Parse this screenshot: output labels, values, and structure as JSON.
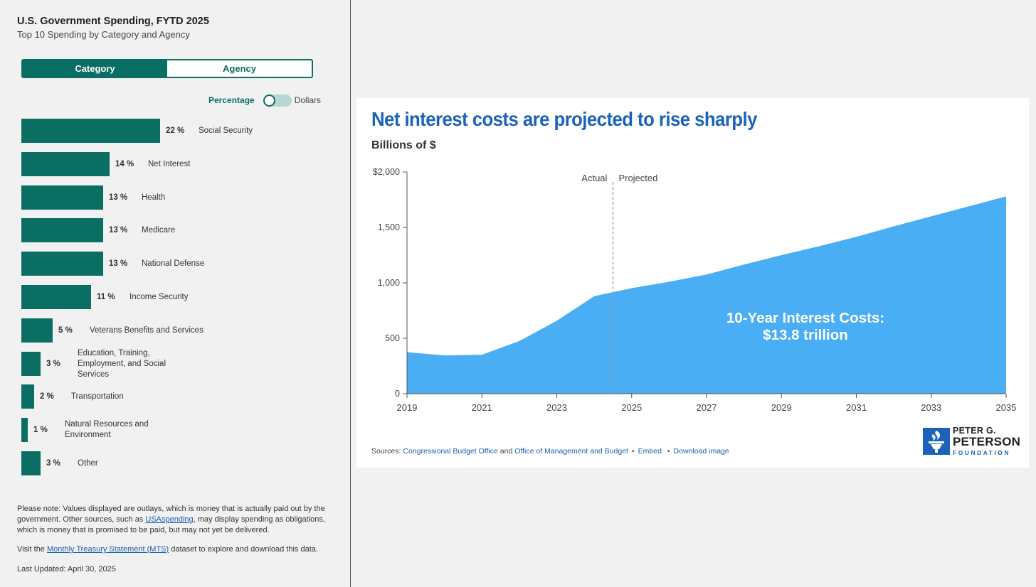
{
  "left": {
    "title": "U.S. Government Spending, FYTD 2025",
    "subtitle": "Top 10 Spending by Category and Agency",
    "tabs": [
      {
        "label": "Category",
        "active": true
      },
      {
        "label": "Agency",
        "active": false
      }
    ],
    "toggle": {
      "left_label": "Percentage",
      "right_label": "Dollars",
      "selected": "Percentage"
    },
    "bars": [
      {
        "pct": 22,
        "pct_label": "22 %",
        "label": "Social Security"
      },
      {
        "pct": 14,
        "pct_label": "14 %",
        "label": "Net Interest"
      },
      {
        "pct": 13,
        "pct_label": "13 %",
        "label": "Health"
      },
      {
        "pct": 13,
        "pct_label": "13 %",
        "label": "Medicare"
      },
      {
        "pct": 13,
        "pct_label": "13 %",
        "label": "National Defense"
      },
      {
        "pct": 11,
        "pct_label": "11 %",
        "label": "Income Security"
      },
      {
        "pct": 5,
        "pct_label": "5 %",
        "label": "Veterans Benefits and Services"
      },
      {
        "pct": 3,
        "pct_label": "3 %",
        "label": "Education, Training, Employment, and Social Services"
      },
      {
        "pct": 2,
        "pct_label": "2 %",
        "label": "Transportation"
      },
      {
        "pct": 1,
        "pct_label": "1 %",
        "label": "Natural Resources and Environment"
      },
      {
        "pct": 3,
        "pct_label": "3 %",
        "label": "Other"
      }
    ],
    "note": {
      "p1_before": "Please note: Values displayed are outlays, which is money that is actually paid out by the government. Other sources, such as ",
      "p1_link": "USAspending",
      "p1_after": ", may display spending as obligations, which is money that is promised to be paid, but may not yet be delivered.",
      "p2_before": "Visit the ",
      "p2_link": "Monthly Treasury Statement (MTS)",
      "p2_after": " dataset to explore and download this data.",
      "updated": "Last Updated: April 30, 2025"
    },
    "colors": {
      "bar": "#0b6e62"
    }
  },
  "card": {
    "title": "Net interest costs are projected to rise sharply",
    "subtitle": "Billions of $",
    "sources_prefix": "Sources: ",
    "source1": "Congressional Budget Office",
    "and": " and ",
    "source2": "Office of Management and Budget",
    "embed": "Embed",
    "download": "Download image",
    "logo": {
      "line1": "PETER G.",
      "line2": "PETERSON",
      "line3": "FOUNDATION"
    }
  },
  "chart_data": {
    "type": "area",
    "title": "Net interest costs are projected to rise sharply",
    "ylabel": "Billions of $",
    "x": [
      2019,
      2020,
      2021,
      2022,
      2023,
      2024,
      2025,
      2026,
      2027,
      2028,
      2029,
      2030,
      2031,
      2032,
      2033,
      2034,
      2035
    ],
    "series": [
      {
        "values": [
          375,
          345,
          352,
          475,
          658,
          880,
          952,
          1010,
          1075,
          1165,
          1250,
          1330,
          1415,
          1510,
          1600,
          1690,
          1780
        ]
      }
    ],
    "xticks": [
      "2019",
      "2021",
      "2023",
      "2025",
      "2027",
      "2029",
      "2031",
      "2033",
      "2035"
    ],
    "yticks": [
      "0",
      "500",
      "1,000",
      "1,500",
      "$2,000"
    ],
    "ytick_values": [
      0,
      500,
      1000,
      1500,
      2000
    ],
    "ylim": [
      0,
      2000
    ],
    "xlim": [
      2019,
      2035
    ],
    "divider_x": 2024.5,
    "divider_left_label": "Actual",
    "divider_right_label": "Projected",
    "annotation_line1": "10-Year Interest Costs:",
    "annotation_line2": "$13.8 trillion",
    "color": "#4aaef5",
    "grid": false,
    "legend": "none"
  }
}
